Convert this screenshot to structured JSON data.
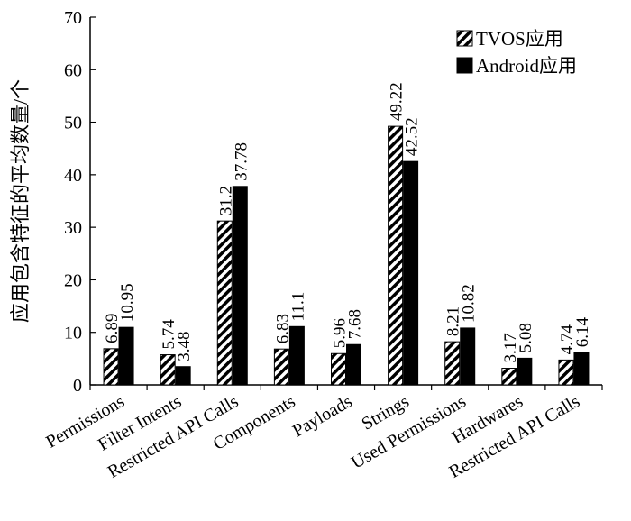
{
  "chart_data": {
    "type": "bar",
    "categories": [
      "Permissions",
      "Filter Intents",
      "Restricted API Calls",
      "Components",
      "Payloads",
      "Strings",
      "Used Permissions",
      "Hardwares",
      "Restricted API Calls"
    ],
    "series": [
      {
        "name": "TVOS应用",
        "values": [
          6.89,
          5.74,
          31.2,
          6.83,
          5.96,
          49.22,
          8.21,
          3.17,
          4.74
        ],
        "labels": [
          "6.89",
          "5.74",
          "31.2",
          "6.83",
          "5.96",
          "49.22",
          "8.21",
          "3.17",
          "4.74"
        ],
        "pattern": "diagonal-hatch"
      },
      {
        "name": "Android应用",
        "values": [
          10.95,
          3.48,
          37.78,
          11.1,
          7.68,
          42.52,
          10.82,
          5.08,
          6.14
        ],
        "labels": [
          "10.95",
          "3.48",
          "37.78",
          "11.1",
          "7.68",
          "42.52",
          "10.82",
          "5.08",
          "6.14"
        ],
        "color": "#000000"
      }
    ],
    "ylabel": "应用包含特征的平均数量/个",
    "xlabel": "",
    "ylim": [
      0,
      70
    ],
    "yticks": [
      0,
      10,
      20,
      30,
      40,
      50,
      60,
      70
    ],
    "ytick_labels": [
      "0",
      "10",
      "20",
      "30",
      "40",
      "50",
      "60",
      "70"
    ],
    "grid": false,
    "legend_position": "top-right"
  }
}
